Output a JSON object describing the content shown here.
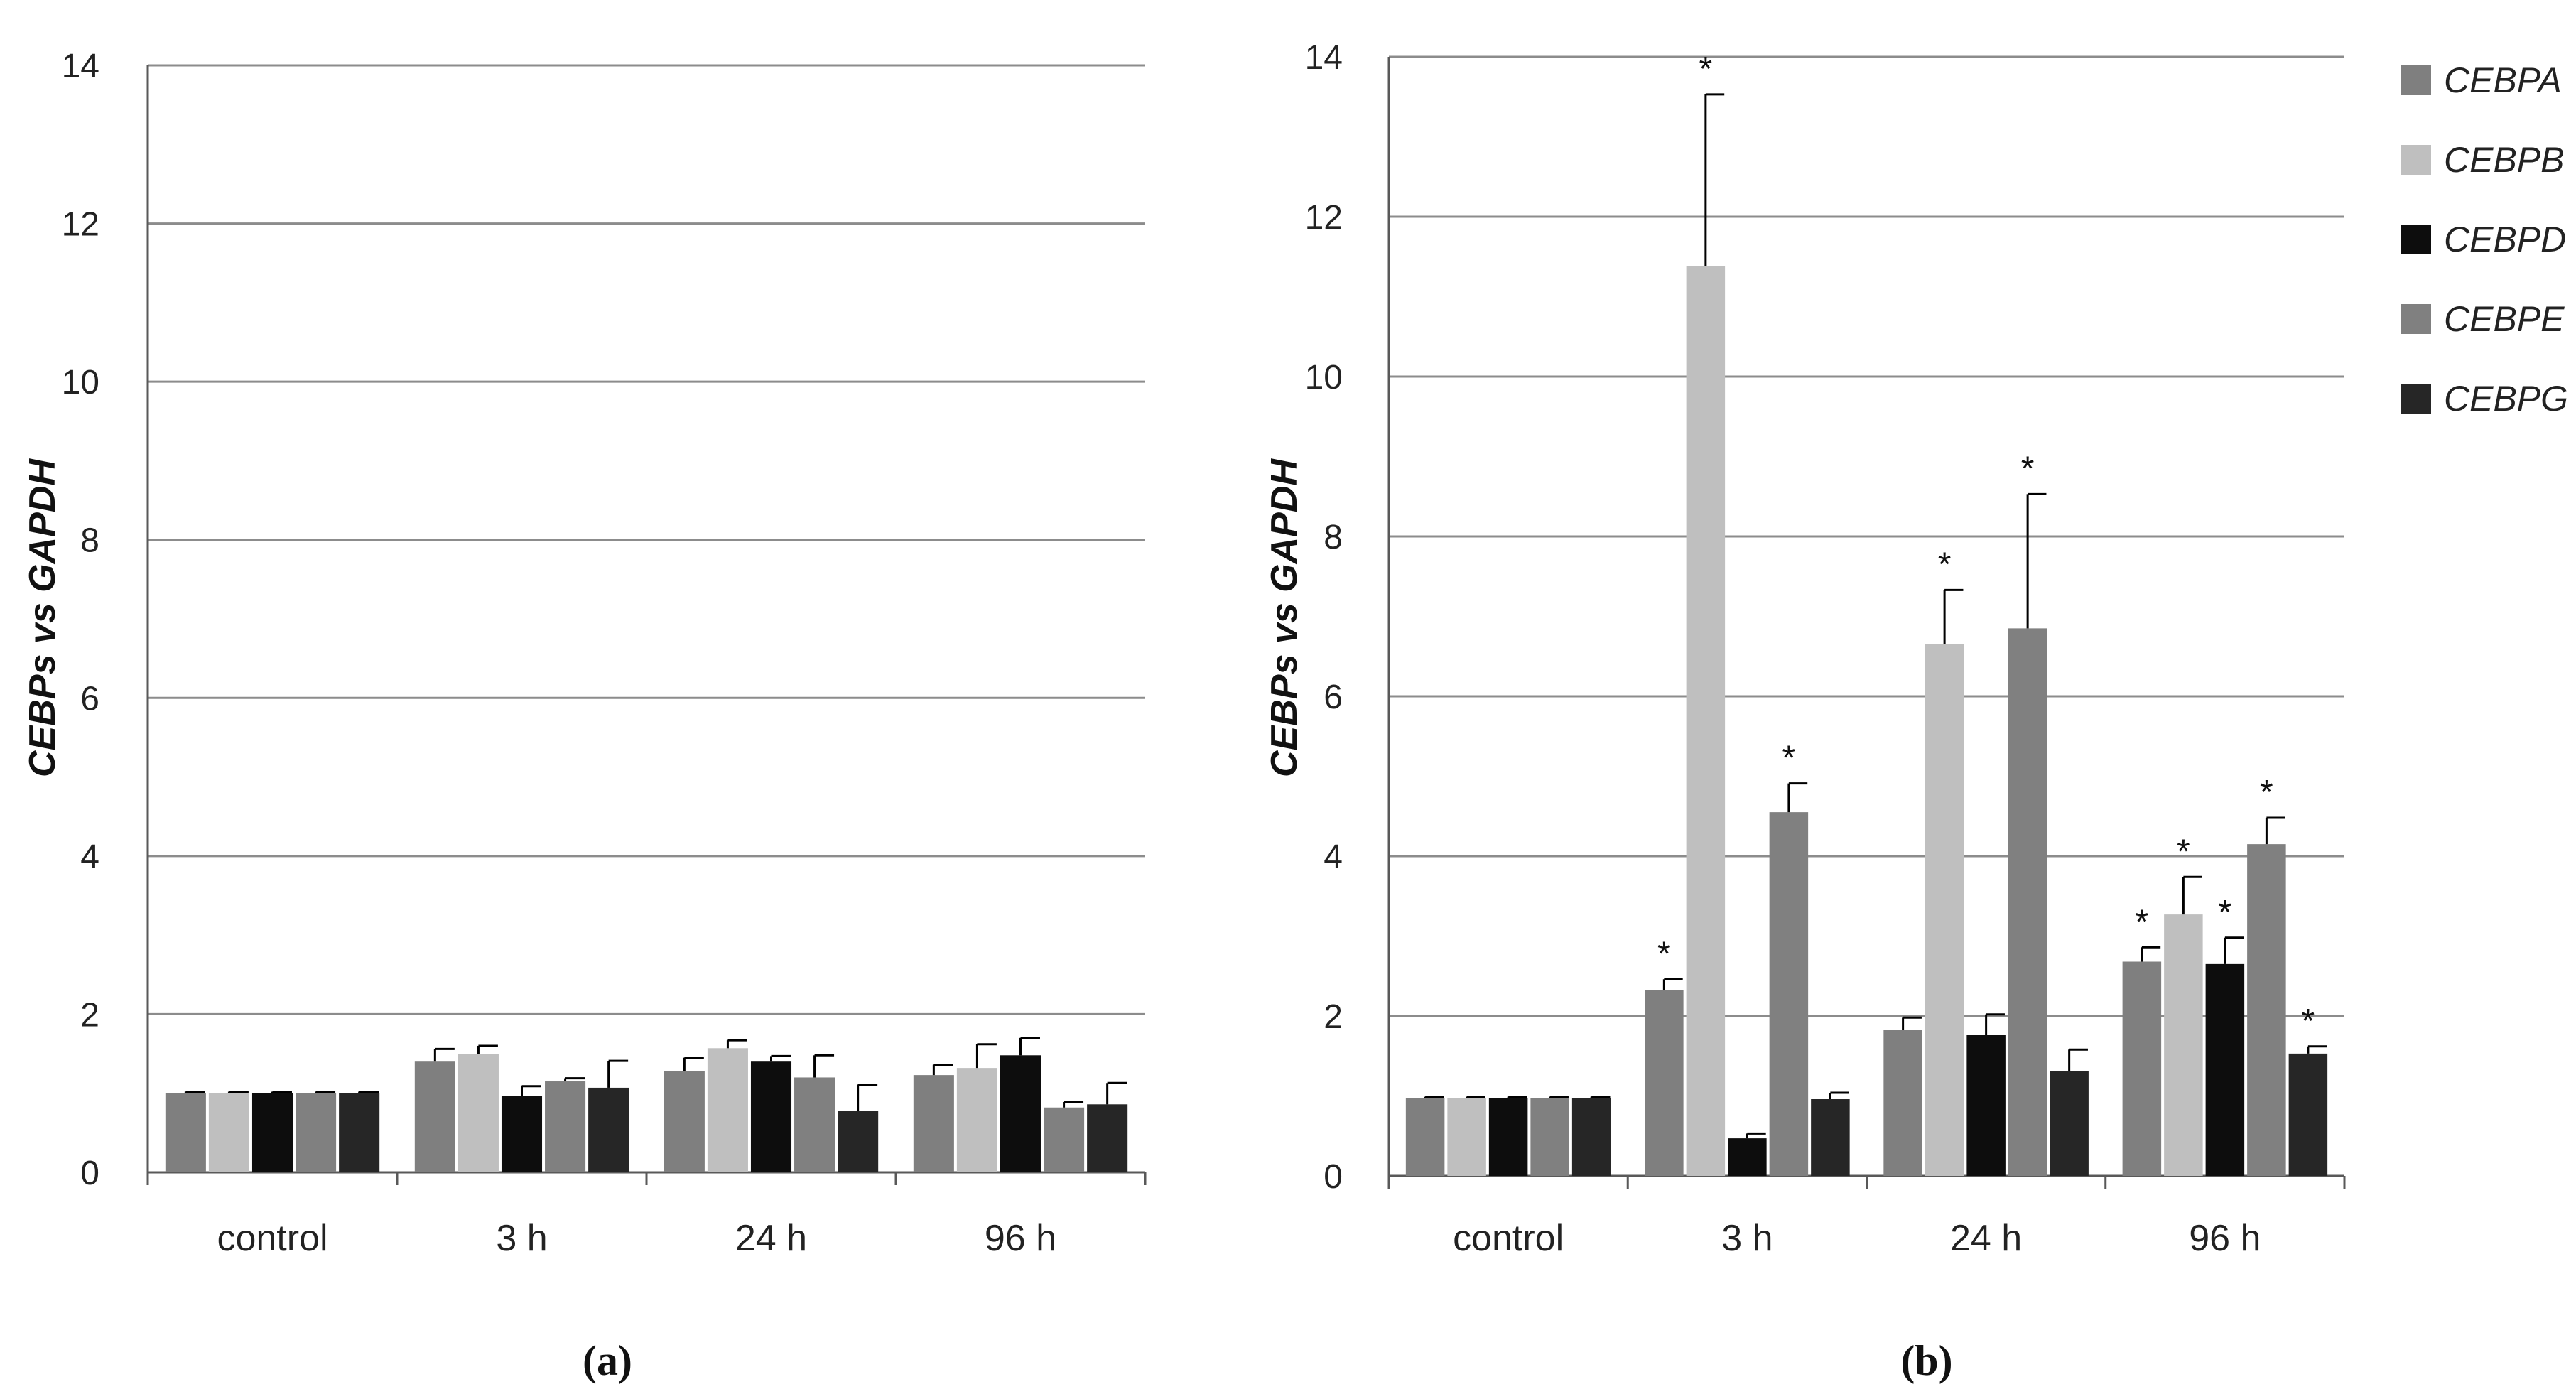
{
  "colors": {
    "CEBPA": "#7f7f7f",
    "CEBPB": "#bfbfbf",
    "CEBPD": "#0d0d0d",
    "CEBPE": "#808080",
    "CEBPG": "#262626",
    "grid": "#8c8c8c",
    "axis": "#595959"
  },
  "legend": [
    "CEBPA",
    "CEBPB",
    "CEBPD",
    "CEBPE",
    "CEBPG"
  ],
  "chart_data": [
    {
      "type": "bar",
      "title": "",
      "panel_label": "(a)",
      "xlabel": "",
      "ylabel": "CEBPs vs GAPDH",
      "ylim": [
        0,
        14
      ],
      "yticks": [
        "0",
        "2",
        "4",
        "6",
        "8",
        "10",
        "12",
        "14"
      ],
      "categories": [
        "control",
        "3 h",
        "24 h",
        "96 h"
      ],
      "series": [
        {
          "name": "CEBPA",
          "values": [
            1.0,
            1.4,
            1.28,
            1.23
          ],
          "errors": [
            0.02,
            0.16,
            0.17,
            0.13
          ],
          "sig": [
            false,
            false,
            false,
            false
          ]
        },
        {
          "name": "CEBPB",
          "values": [
            1.0,
            1.5,
            1.57,
            1.32
          ],
          "errors": [
            0.02,
            0.1,
            0.1,
            0.3
          ],
          "sig": [
            false,
            false,
            false,
            false
          ]
        },
        {
          "name": "CEBPD",
          "values": [
            1.0,
            0.97,
            1.4,
            1.48
          ],
          "errors": [
            0.02,
            0.12,
            0.07,
            0.22
          ],
          "sig": [
            false,
            false,
            false,
            false
          ]
        },
        {
          "name": "CEBPE",
          "values": [
            1.0,
            1.15,
            1.2,
            0.82
          ],
          "errors": [
            0.02,
            0.04,
            0.28,
            0.07
          ],
          "sig": [
            false,
            false,
            false,
            false
          ]
        },
        {
          "name": "CEBPG",
          "values": [
            1.0,
            1.07,
            0.78,
            0.86
          ],
          "errors": [
            0.02,
            0.34,
            0.33,
            0.27
          ],
          "sig": [
            false,
            false,
            false,
            false
          ]
        }
      ]
    },
    {
      "type": "bar",
      "title": "",
      "panel_label": "(b)",
      "xlabel": "",
      "ylabel": "CEBPs vs GAPDH",
      "ylim": [
        0,
        14
      ],
      "yticks": [
        "0",
        "2",
        "4",
        "6",
        "8",
        "10",
        "12",
        "14"
      ],
      "categories": [
        "control",
        "3 h",
        "24 h",
        "96 h"
      ],
      "series": [
        {
          "name": "CEBPA",
          "values": [
            0.97,
            2.32,
            1.83,
            2.68
          ],
          "errors": [
            0.02,
            0.14,
            0.15,
            0.18
          ],
          "sig": [
            false,
            true,
            false,
            true
          ]
        },
        {
          "name": "CEBPB",
          "values": [
            0.97,
            11.38,
            6.65,
            3.27
          ],
          "errors": [
            0.02,
            2.15,
            0.68,
            0.47
          ],
          "sig": [
            false,
            true,
            true,
            true
          ]
        },
        {
          "name": "CEBPD",
          "values": [
            0.97,
            0.47,
            1.76,
            2.65
          ],
          "errors": [
            0.02,
            0.06,
            0.26,
            0.33
          ],
          "sig": [
            false,
            false,
            false,
            true
          ]
        },
        {
          "name": "CEBPE",
          "values": [
            0.97,
            4.55,
            6.85,
            4.15
          ],
          "errors": [
            0.02,
            0.36,
            1.68,
            0.33
          ],
          "sig": [
            false,
            true,
            true,
            true
          ]
        },
        {
          "name": "CEBPG",
          "values": [
            0.97,
            0.96,
            1.31,
            1.53
          ],
          "errors": [
            0.02,
            0.08,
            0.27,
            0.09
          ],
          "sig": [
            false,
            false,
            false,
            true
          ]
        }
      ]
    }
  ]
}
